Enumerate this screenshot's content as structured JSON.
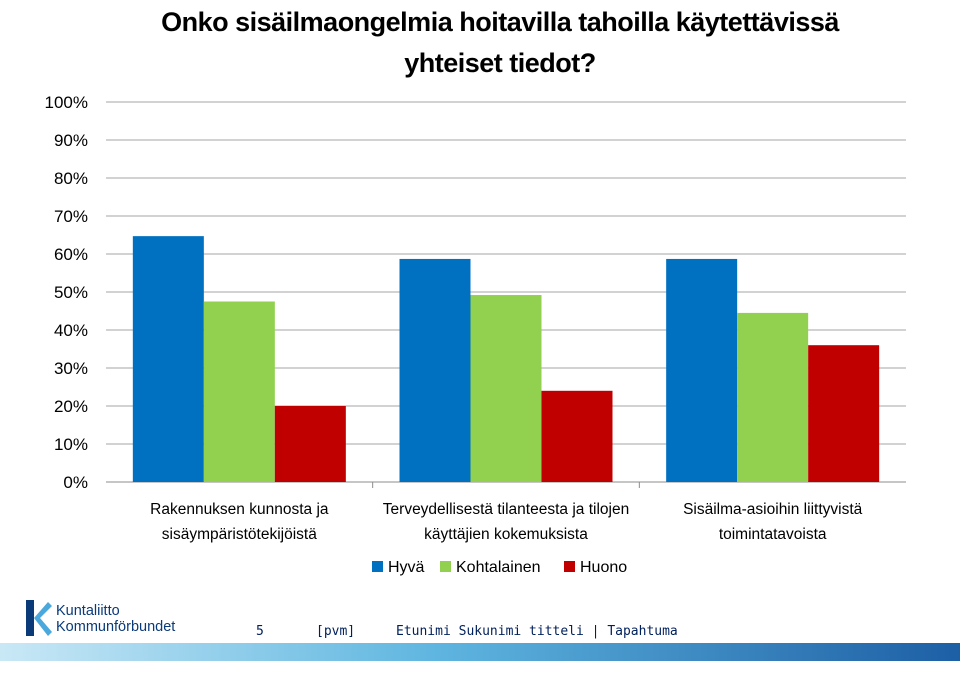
{
  "chart_data": {
    "type": "bar",
    "title": "Onko sisäilmaongelmia hoitavilla tahoilla käytettävissä yhteiset tiedot?",
    "title_lines": [
      "Onko sisäilmaongelmia hoitavilla tahoilla käytettävissä",
      "yhteiset tiedot?"
    ],
    "categories": [
      "Rakennuksen kunnosta ja sisäympäristötekijöistä",
      "Terveydellisestä tilanteesta ja tilojen käyttäjien kokemuksista",
      "Sisäilma-asioihin liittyvistä toimintatavoista"
    ],
    "category_lines": [
      [
        "Rakennuksen kunnosta ja",
        "sisäympäristötekijöistä"
      ],
      [
        "Terveydellisestä tilanteesta ja tilojen",
        "käyttäjien kokemuksista"
      ],
      [
        "Sisäilma-asioihin liittyvistä",
        "toimintatavoista"
      ]
    ],
    "series": [
      {
        "name": "Hyvä",
        "color": "#0070c0",
        "values": [
          64.7,
          58.7,
          58.7
        ]
      },
      {
        "name": "Kohtalainen",
        "color": "#92d050",
        "values": [
          47.5,
          49.2,
          44.5
        ]
      },
      {
        "name": "Huono",
        "color": "#c00000",
        "values": [
          20.0,
          24.0,
          36.0
        ]
      }
    ],
    "ylim": [
      0,
      100
    ],
    "yticks": [
      "0%",
      "10%",
      "20%",
      "30%",
      "40%",
      "50%",
      "60%",
      "70%",
      "80%",
      "90%",
      "100%"
    ],
    "xlabel": "",
    "ylabel": "",
    "grid": true,
    "legend_position": "bottom"
  },
  "footer": {
    "logo_line1": "Kuntaliitto",
    "logo_line2": "Kommunförbundet",
    "page_number": "5",
    "date": "[pvm]",
    "presenter": "Etunimi Sukunimi titteli | Tapahtuma"
  },
  "colors": {
    "logo_blue": "#0a3a78",
    "logo_light": "#4aa8dc"
  }
}
